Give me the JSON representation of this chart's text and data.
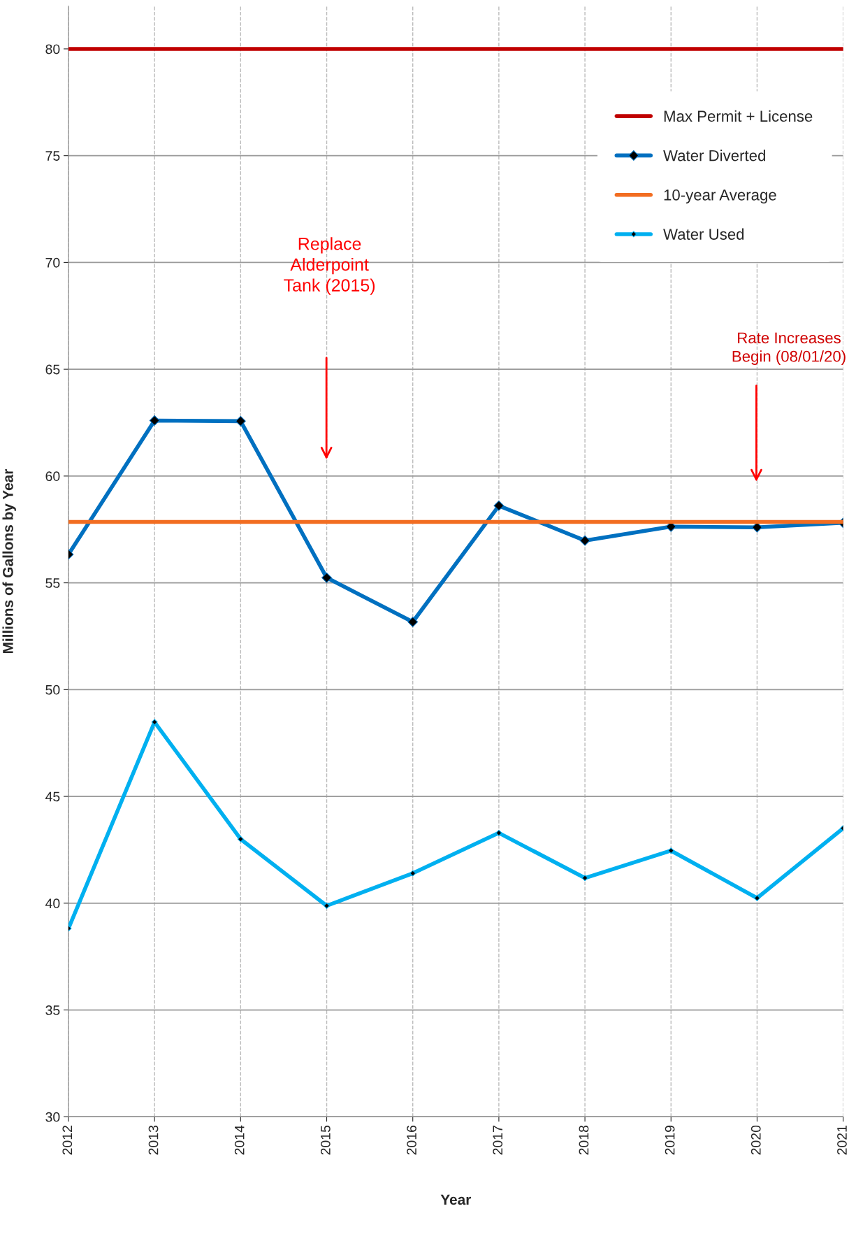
{
  "chart_data": {
    "type": "line",
    "xlabel": "Year",
    "ylabel": "Millions of Gallons by Year",
    "categories": [
      "2012",
      "2013",
      "2014",
      "2015",
      "2016",
      "2017",
      "2018",
      "2019",
      "2020",
      "2021"
    ],
    "series": [
      {
        "name": "Max Permit + License",
        "color": "#c00000",
        "marker": "none",
        "values": [
          80,
          80,
          80,
          80,
          80,
          80,
          80,
          80,
          80,
          80
        ]
      },
      {
        "name": "Water Diverted",
        "color": "#0070c0",
        "marker": "diamond",
        "values": [
          56.33,
          62.6,
          62.57,
          55.24,
          53.17,
          58.61,
          56.98,
          57.63,
          57.6,
          57.81
        ]
      },
      {
        "name": "10-year Average",
        "color": "#f26d21",
        "marker": "none",
        "values": [
          57.85,
          57.85,
          57.85,
          57.85,
          57.85,
          57.85,
          57.85,
          57.85,
          57.85,
          57.85
        ]
      },
      {
        "name": "Water Used",
        "color": "#00b0f0",
        "marker": "diamond",
        "values": [
          38.82,
          48.48,
          43.0,
          39.88,
          41.4,
          43.29,
          41.18,
          42.46,
          40.24,
          43.51
        ]
      }
    ],
    "ylim": [
      30,
      82
    ],
    "yticks": [
      30,
      35,
      40,
      45,
      50,
      55,
      60,
      65,
      70,
      75,
      80
    ],
    "grid": true,
    "legend": "top right",
    "annotations": [
      "Replace\nAlderpoint\nTank (2015)",
      "Rate Increases\nBegin (08/01/20)"
    ]
  }
}
